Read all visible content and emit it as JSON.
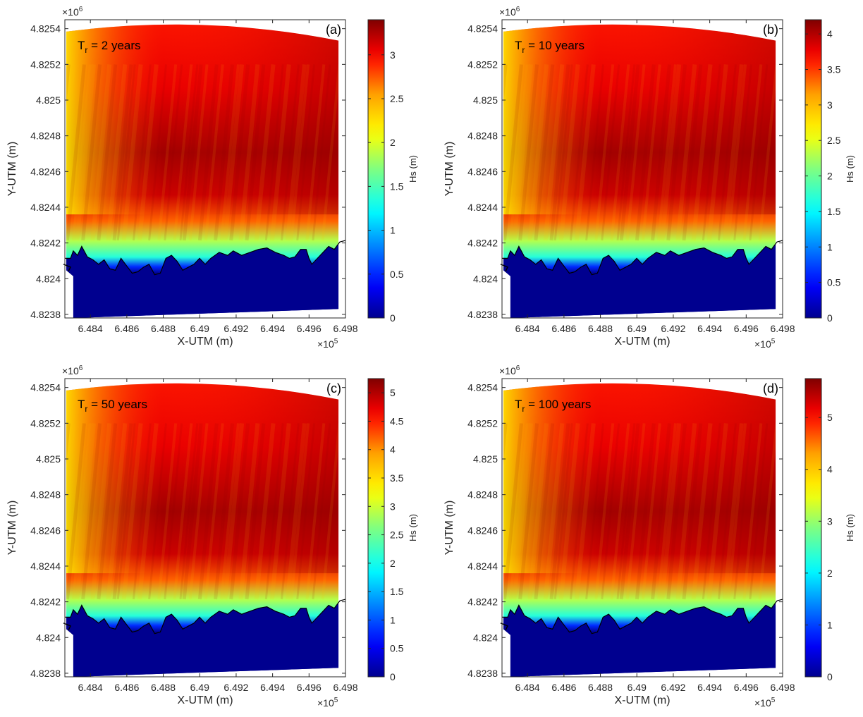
{
  "chart_data": [
    {
      "type": "heatmap",
      "panel_label": "(a)",
      "annotation": {
        "main": "T",
        "sub": "r",
        "rest": " = 2 years"
      },
      "xlabel": "X-UTM (m)",
      "ylabel": "Y-UTM (m)",
      "x_exponent": {
        "base": "×10",
        "power": "5"
      },
      "y_exponent": {
        "base": "×10",
        "power": "6"
      },
      "x_ticks": [
        "6.484",
        "6.486",
        "6.488",
        "6.49",
        "6.492",
        "6.494",
        "6.496",
        "6.498"
      ],
      "x_tick_values": [
        6.484,
        6.486,
        6.488,
        6.49,
        6.492,
        6.494,
        6.496,
        6.498
      ],
      "y_ticks": [
        "4.8238",
        "4.824",
        "4.8242",
        "4.8244",
        "4.8246",
        "4.8248",
        "4.825",
        "4.8252",
        "4.8254"
      ],
      "y_tick_values": [
        4.8238,
        4.824,
        4.8242,
        4.8244,
        4.8246,
        4.8248,
        4.825,
        4.8252,
        4.8254
      ],
      "xlim": [
        6.4826,
        6.498
      ],
      "ylim": [
        4.82378,
        4.82545
      ],
      "colorbar": {
        "label": "Hs (m)",
        "ticks": [
          "0",
          "0.5",
          "1",
          "1.5",
          "2",
          "2.5",
          "3"
        ],
        "tick_values": [
          0,
          0.5,
          1,
          1.5,
          2,
          2.5,
          3
        ],
        "max": 3.4,
        "colormap": "jet"
      },
      "field_max_hs": 3.4
    },
    {
      "type": "heatmap",
      "panel_label": "(b)",
      "annotation": {
        "main": "T",
        "sub": "r",
        "rest": " = 10 years"
      },
      "xlabel": "X-UTM (m)",
      "ylabel": "Y-UTM (m)",
      "x_exponent": {
        "base": "×10",
        "power": "5"
      },
      "y_exponent": {
        "base": "×10",
        "power": "6"
      },
      "x_ticks": [
        "6.484",
        "6.486",
        "6.488",
        "6.49",
        "6.492",
        "6.494",
        "6.496",
        "6.498"
      ],
      "x_tick_values": [
        6.484,
        6.486,
        6.488,
        6.49,
        6.492,
        6.494,
        6.496,
        6.498
      ],
      "y_ticks": [
        "4.8238",
        "4.824",
        "4.8242",
        "4.8244",
        "4.8246",
        "4.8248",
        "4.825",
        "4.8252",
        "4.8254"
      ],
      "y_tick_values": [
        4.8238,
        4.824,
        4.8242,
        4.8244,
        4.8246,
        4.8248,
        4.825,
        4.8252,
        4.8254
      ],
      "xlim": [
        6.4826,
        6.498
      ],
      "ylim": [
        4.82378,
        4.82545
      ],
      "colorbar": {
        "label": "Hs (m)",
        "ticks": [
          "0",
          "0.5",
          "1",
          "1.5",
          "2",
          "2.5",
          "3",
          "3.5",
          "4"
        ],
        "tick_values": [
          0,
          0.5,
          1,
          1.5,
          2,
          2.5,
          3,
          3.5,
          4
        ],
        "max": 4.2,
        "colormap": "jet"
      },
      "field_max_hs": 4.2
    },
    {
      "type": "heatmap",
      "panel_label": "(c)",
      "annotation": {
        "main": "T",
        "sub": "r",
        "rest": " = 50 years"
      },
      "xlabel": "X-UTM (m)",
      "ylabel": "Y-UTM (m)",
      "x_exponent": {
        "base": "×10",
        "power": "5"
      },
      "y_exponent": {
        "base": "×10",
        "power": "6"
      },
      "x_ticks": [
        "6.484",
        "6.486",
        "6.488",
        "6.49",
        "6.492",
        "6.494",
        "6.496",
        "6.498"
      ],
      "x_tick_values": [
        6.484,
        6.486,
        6.488,
        6.49,
        6.492,
        6.494,
        6.496,
        6.498
      ],
      "y_ticks": [
        "4.8238",
        "4.824",
        "4.8242",
        "4.8244",
        "4.8246",
        "4.8248",
        "4.825",
        "4.8252",
        "4.8254"
      ],
      "y_tick_values": [
        4.8238,
        4.824,
        4.8242,
        4.8244,
        4.8246,
        4.8248,
        4.825,
        4.8252,
        4.8254
      ],
      "xlim": [
        6.4826,
        6.498
      ],
      "ylim": [
        4.82378,
        4.82545
      ],
      "colorbar": {
        "label": "Hs (m)",
        "ticks": [
          "0",
          "0.5",
          "1",
          "1.5",
          "2",
          "2.5",
          "3",
          "3.5",
          "4",
          "4.5",
          "5"
        ],
        "tick_values": [
          0,
          0.5,
          1,
          1.5,
          2,
          2.5,
          3,
          3.5,
          4,
          4.5,
          5
        ],
        "max": 5.25,
        "colormap": "jet"
      },
      "field_max_hs": 5.25
    },
    {
      "type": "heatmap",
      "panel_label": "(d)",
      "annotation": {
        "main": "T",
        "sub": "r",
        "rest": " = 100 years"
      },
      "xlabel": "X-UTM (m)",
      "ylabel": "Y-UTM (m)",
      "x_exponent": {
        "base": "×10",
        "power": "5"
      },
      "y_exponent": {
        "base": "×10",
        "power": "6"
      },
      "x_ticks": [
        "6.484",
        "6.486",
        "6.488",
        "6.49",
        "6.492",
        "6.494",
        "6.496",
        "6.498"
      ],
      "x_tick_values": [
        6.484,
        6.486,
        6.488,
        6.49,
        6.492,
        6.494,
        6.496,
        6.498
      ],
      "y_ticks": [
        "4.8238",
        "4.824",
        "4.8242",
        "4.8244",
        "4.8246",
        "4.8248",
        "4.825",
        "4.8252",
        "4.8254"
      ],
      "y_tick_values": [
        4.8238,
        4.824,
        4.8242,
        4.8244,
        4.8246,
        4.8248,
        4.825,
        4.8252,
        4.8254
      ],
      "xlim": [
        6.4826,
        6.498
      ],
      "ylim": [
        4.82378,
        4.82545
      ],
      "colorbar": {
        "label": "Hs (m)",
        "ticks": [
          "0",
          "1",
          "2",
          "3",
          "4",
          "5"
        ],
        "tick_values": [
          0,
          1,
          2,
          3,
          4,
          5
        ],
        "max": 5.75,
        "colormap": "jet"
      },
      "field_max_hs": 5.75
    }
  ]
}
